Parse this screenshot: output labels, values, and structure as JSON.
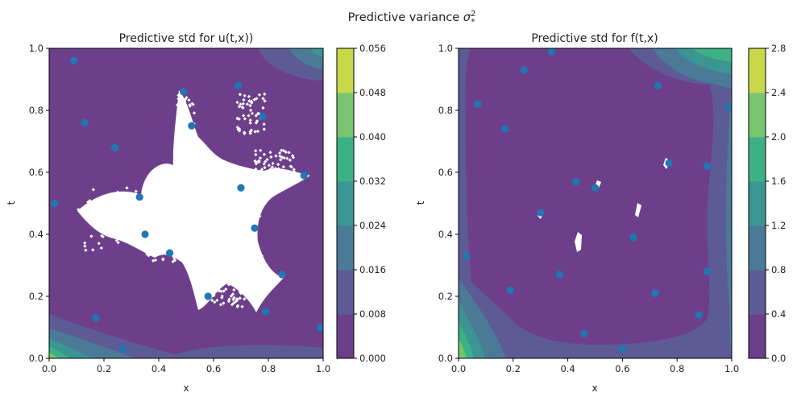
{
  "suptitle": {
    "prefix": "Predictive variance ",
    "symbol": "σ",
    "sup": "2",
    "sub": "*"
  },
  "colors": {
    "levels": [
      "#6d3f8a",
      "#5d5b95",
      "#4b7a97",
      "#3a9593",
      "#3db186",
      "#78c471",
      "#c8d84a"
    ],
    "points": "#1f77b4"
  },
  "chart_data": [
    {
      "type": "contour",
      "title": "Predictive std for u(t,x))",
      "xlabel": "x",
      "ylabel": "t",
      "xlim": [
        0,
        1
      ],
      "ylim": [
        0,
        1
      ],
      "xticks": [
        "0.0",
        "0.2",
        "0.4",
        "0.6",
        "0.8",
        "1.0"
      ],
      "yticks": [
        "0.0",
        "0.2",
        "0.4",
        "0.6",
        "0.8",
        "1.0"
      ],
      "colorbar_ticks": [
        "0.000",
        "0.008",
        "0.016",
        "0.024",
        "0.032",
        "0.040",
        "0.048",
        "0.056"
      ],
      "colorbar_range": [
        0,
        0.056
      ],
      "points": [
        {
          "x": 0.09,
          "t": 0.96
        },
        {
          "x": 0.13,
          "t": 0.76
        },
        {
          "x": 0.24,
          "t": 0.68
        },
        {
          "x": 0.49,
          "t": 0.86
        },
        {
          "x": 0.52,
          "t": 0.75
        },
        {
          "x": 0.69,
          "t": 0.88
        },
        {
          "x": 0.78,
          "t": 0.78
        },
        {
          "x": 0.02,
          "t": 0.5
        },
        {
          "x": 0.33,
          "t": 0.52
        },
        {
          "x": 0.35,
          "t": 0.4
        },
        {
          "x": 0.44,
          "t": 0.34
        },
        {
          "x": 0.7,
          "t": 0.55
        },
        {
          "x": 0.75,
          "t": 0.42
        },
        {
          "x": 0.93,
          "t": 0.59
        },
        {
          "x": 0.85,
          "t": 0.27
        },
        {
          "x": 0.58,
          "t": 0.2
        },
        {
          "x": 0.79,
          "t": 0.15
        },
        {
          "x": 0.17,
          "t": 0.13
        },
        {
          "x": 0.27,
          "t": 0.03
        },
        {
          "x": 0.99,
          "t": 0.1
        }
      ]
    },
    {
      "type": "contour",
      "title": "Predictive std for f(t,x)",
      "xlabel": "x",
      "ylabel": "t",
      "xlim": [
        0,
        1
      ],
      "ylim": [
        0,
        1
      ],
      "xticks": [
        "0.0",
        "0.2",
        "0.4",
        "0.6",
        "0.8",
        "1.0"
      ],
      "yticks": [
        "0.0",
        "0.2",
        "0.4",
        "0.6",
        "0.8",
        "1.0"
      ],
      "colorbar_ticks": [
        "0.0",
        "0.4",
        "0.8",
        "1.2",
        "1.6",
        "2.0",
        "2.4",
        "2.8"
      ],
      "colorbar_range": [
        0,
        2.8
      ],
      "points": [
        {
          "x": 0.34,
          "t": 0.99
        },
        {
          "x": 0.24,
          "t": 0.93
        },
        {
          "x": 0.07,
          "t": 0.82
        },
        {
          "x": 0.17,
          "t": 0.74
        },
        {
          "x": 0.73,
          "t": 0.88
        },
        {
          "x": 0.99,
          "t": 0.81
        },
        {
          "x": 0.77,
          "t": 0.63
        },
        {
          "x": 0.91,
          "t": 0.62
        },
        {
          "x": 0.43,
          "t": 0.57
        },
        {
          "x": 0.5,
          "t": 0.55
        },
        {
          "x": 0.3,
          "t": 0.47
        },
        {
          "x": 0.64,
          "t": 0.39
        },
        {
          "x": 0.03,
          "t": 0.33
        },
        {
          "x": 0.37,
          "t": 0.27
        },
        {
          "x": 0.91,
          "t": 0.28
        },
        {
          "x": 0.19,
          "t": 0.22
        },
        {
          "x": 0.72,
          "t": 0.21
        },
        {
          "x": 0.88,
          "t": 0.14
        },
        {
          "x": 0.46,
          "t": 0.08
        },
        {
          "x": 0.6,
          "t": 0.03
        }
      ]
    }
  ]
}
